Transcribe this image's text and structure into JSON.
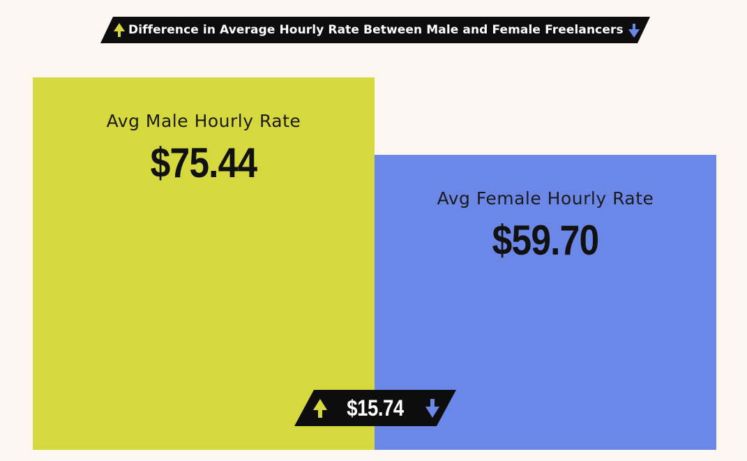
{
  "chart_data": {
    "type": "bar",
    "title": "Difference in Average Hourly Rate Between Male and Female Freelancers",
    "categories": [
      "Avg Male Hourly Rate",
      "Avg Female Hourly Rate"
    ],
    "values": [
      75.44,
      59.7
    ],
    "value_labels": [
      "$75.44",
      "$59.70"
    ],
    "difference_label": "$15.74",
    "difference": 15.74,
    "ylim": [
      0,
      75.44
    ],
    "grid": false,
    "legend": "none",
    "colors": {
      "male": "#d6d93e",
      "female": "#6b88e8",
      "background": "#fdf6f1",
      "banner": "#0d0d0d",
      "up_arrow": "#d6d93e",
      "down_arrow": "#6b88e8"
    },
    "icons": {
      "up": "up-arrow-icon",
      "down": "down-arrow-icon"
    }
  }
}
